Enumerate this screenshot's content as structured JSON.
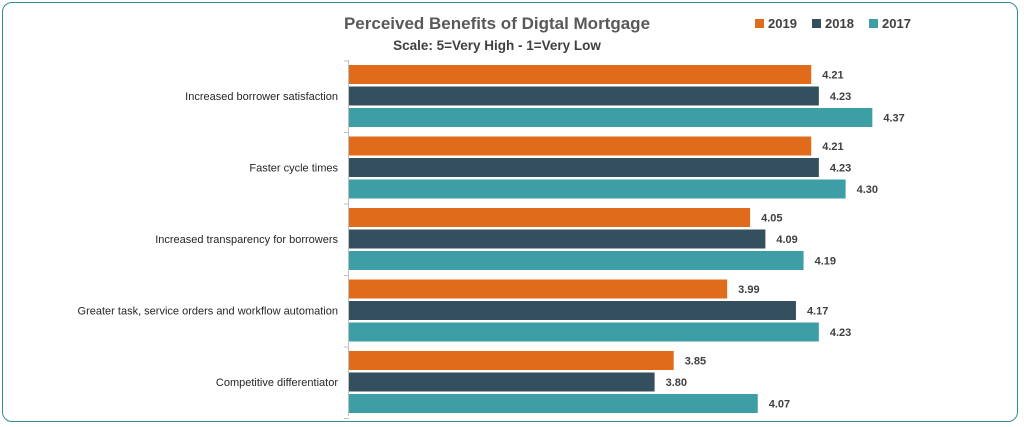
{
  "chart_data": {
    "type": "bar",
    "orientation": "horizontal",
    "title": "Perceived Benefits of Digtal Mortgage",
    "subtitle": "Scale:  5=Very High - 1=Very Low",
    "categories": [
      "Increased borrower satisfaction",
      "Faster cycle times",
      "Increased transparency for borrowers",
      "Greater task, service orders and workflow automation",
      "Competitive differentiator"
    ],
    "series": [
      {
        "name": "2019",
        "color": "#e06c1b",
        "values": [
          4.21,
          4.21,
          4.05,
          3.99,
          3.85
        ]
      },
      {
        "name": "2018",
        "color": "#34505f",
        "values": [
          4.23,
          4.23,
          4.09,
          4.17,
          3.8
        ]
      },
      {
        "name": "2017",
        "color": "#3d9ea5",
        "values": [
          4.37,
          4.3,
          4.19,
          4.23,
          4.07
        ]
      }
    ],
    "xlim": [
      3.0,
      4.5
    ],
    "legend": "top-right",
    "grid": false
  }
}
